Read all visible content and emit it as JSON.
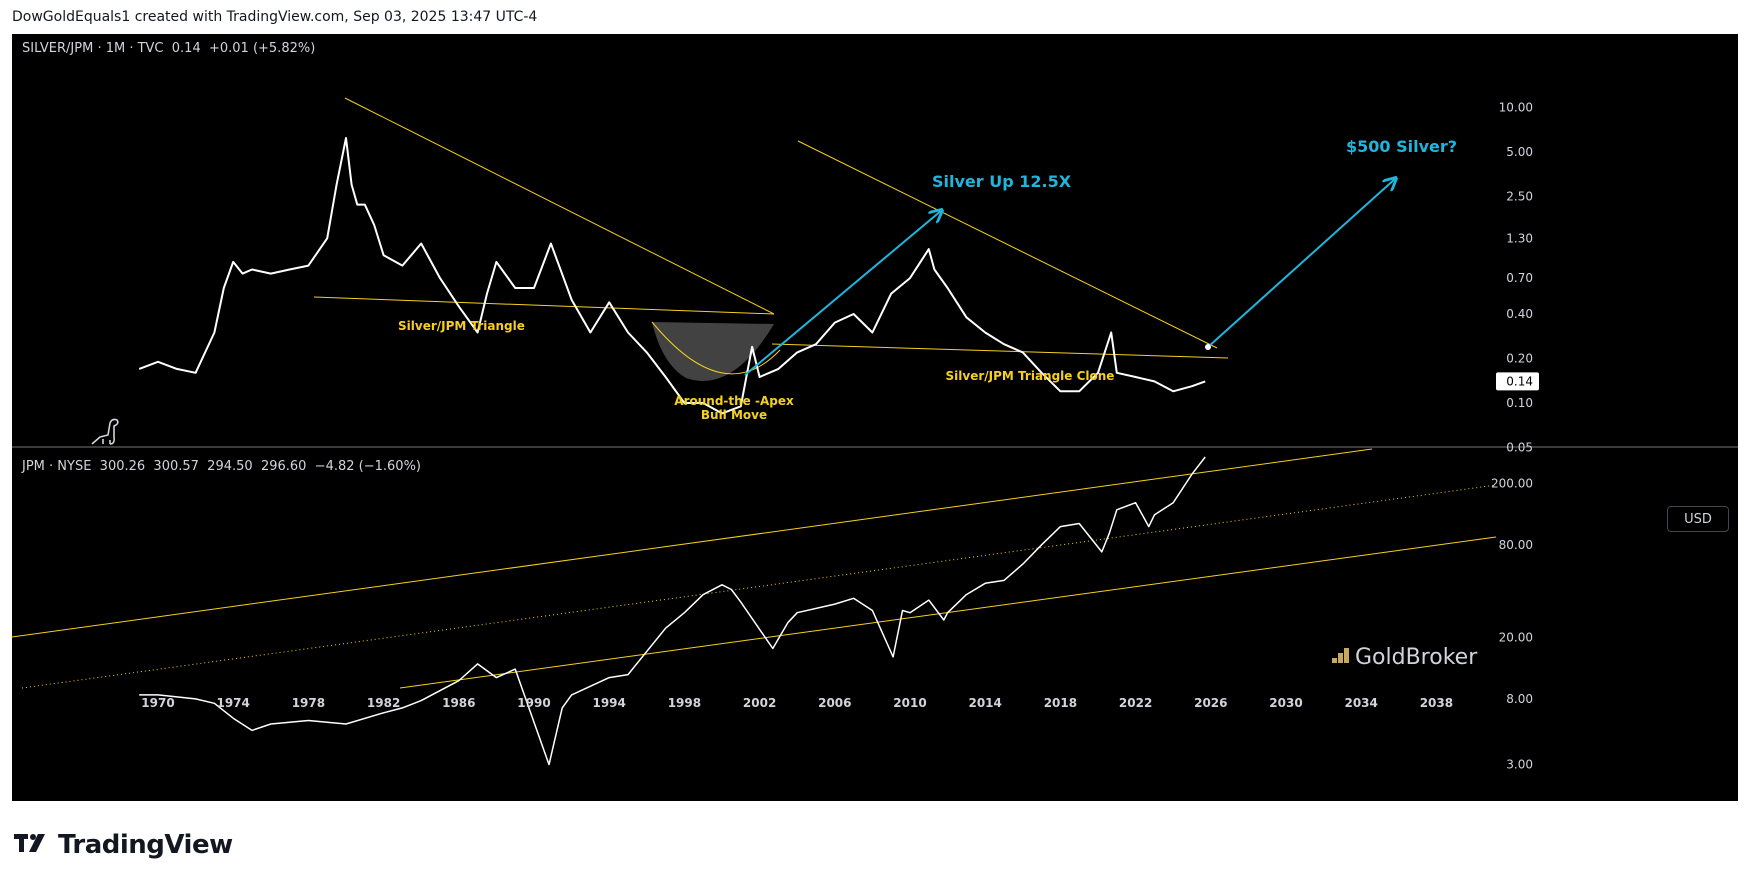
{
  "header": {
    "attribution": "DowGoldEquals1 created with TradingView.com, Sep 03, 2025 13:47 UTC-4"
  },
  "top_panel": {
    "legend": "SILVER/JPM · 1M · TVC  0.14  +0.01 (+5.82%)",
    "price_tag": "0.14"
  },
  "bottom_panel": {
    "legend": "JPM · NYSE  300.26  300.57  294.50  296.60  −4.82 (−1.60%)",
    "currency_button": "USD",
    "watermark": "GoldBroker"
  },
  "brand": {
    "name": "TradingView"
  },
  "colors": {
    "background": "#000000",
    "price_line": "#ffffff",
    "trendline": "#f5d020",
    "arrow": "#1fb5dc",
    "label": "#f5d020",
    "annotation_cyan": "#1fb5dc"
  },
  "icons": [
    "dinosaur-icon",
    "goldbroker-logo-icon",
    "tradingview-logo-icon"
  ],
  "chart_data": [
    {
      "type": "line",
      "title": "SILVER/JPM",
      "yscale": "log",
      "ylim": [
        0.04,
        16
      ],
      "y_ticks": [
        "10.00",
        "5.00",
        "2.50",
        "1.30",
        "0.70",
        "0.40",
        "0.20",
        "0.10",
        "0.05"
      ],
      "x_ticks": [
        "1970",
        "1974",
        "1978",
        "1982",
        "1986",
        "1990",
        "1994",
        "1998",
        "2002",
        "2006",
        "2010",
        "2014",
        "2018",
        "2022",
        "2026",
        "2030",
        "2034",
        "2038"
      ],
      "series": [
        {
          "x": [
            1969,
            1970,
            1971,
            1972,
            1973,
            1973.5,
            1974,
            1974.5,
            1975,
            1976,
            1977,
            1978,
            1979,
            1979.5,
            1980,
            1980.3,
            1980.6,
            1981,
            1981.5,
            1982,
            1983,
            1984,
            1985,
            1986,
            1987,
            1987.5,
            1988,
            1989,
            1990,
            1990.9,
            1992,
            1993,
            1994,
            1995,
            1996,
            1997,
            1998,
            1999,
            2000,
            2001,
            2001.6,
            2002,
            2003,
            2004,
            2005,
            2006,
            2007,
            2008,
            2009,
            2010,
            2011,
            2011.3,
            2012,
            2013,
            2014,
            2015,
            2016,
            2017,
            2018,
            2019,
            2020,
            2020.7,
            2021,
            2022,
            2023,
            2024,
            2025,
            2025.7
          ],
          "y": [
            0.17,
            0.19,
            0.17,
            0.16,
            0.3,
            0.6,
            0.9,
            0.75,
            0.8,
            0.75,
            0.8,
            0.85,
            1.3,
            3.0,
            6.2,
            3.0,
            2.2,
            2.2,
            1.6,
            1.0,
            0.85,
            1.2,
            0.7,
            0.45,
            0.3,
            0.55,
            0.9,
            0.6,
            0.6,
            1.2,
            0.5,
            0.3,
            0.48,
            0.3,
            0.22,
            0.15,
            0.1,
            0.1,
            0.085,
            0.095,
            0.24,
            0.15,
            0.17,
            0.22,
            0.25,
            0.35,
            0.4,
            0.3,
            0.55,
            0.7,
            1.1,
            0.8,
            0.6,
            0.38,
            0.3,
            0.25,
            0.22,
            0.16,
            0.12,
            0.12,
            0.16,
            0.3,
            0.16,
            0.15,
            0.14,
            0.12,
            0.13,
            0.14
          ]
        }
      ],
      "annotations": [
        "Silver/JPM Triangle",
        "Around-the -Apex",
        "Bull Move",
        "Silver/JPM Triangle Clone",
        "Silver Up 12.5X",
        "$500 Silver?"
      ]
    },
    {
      "type": "line",
      "title": "JPM · NYSE",
      "yscale": "log",
      "ylim": [
        2.3,
        500
      ],
      "y_ticks": [
        "200.00",
        "80.00",
        "20.00",
        "8.00",
        "3.00"
      ],
      "x_ticks": [
        "1970",
        "1974",
        "1978",
        "1982",
        "1986",
        "1990",
        "1994",
        "1998",
        "2002",
        "2006",
        "2010",
        "2014",
        "2018",
        "2022",
        "2026",
        "2030",
        "2034",
        "2038"
      ],
      "series": [
        {
          "x": [
            1969,
            1970,
            1972,
            1973,
            1974,
            1975,
            1976,
            1978,
            1980,
            1982,
            1983,
            1984,
            1986,
            1987,
            1988,
            1989,
            1990.8,
            1991.5,
            1992,
            1994,
            1995,
            1997,
            1998,
            1999,
            2000,
            2000.5,
            2001,
            2002.7,
            2003.5,
            2004,
            2006,
            2007,
            2008,
            2009.1,
            2009.6,
            2010,
            2011,
            2011.8,
            2012,
            2013,
            2014,
            2015,
            2016,
            2017,
            2018,
            2019,
            2020.2,
            2020.6,
            2021,
            2022,
            2022.7,
            2023,
            2024,
            2025,
            2025.7
          ],
          "y": [
            8.5,
            8.5,
            8.0,
            7.5,
            6.0,
            5.0,
            5.5,
            5.8,
            5.5,
            6.5,
            7.0,
            7.8,
            10.5,
            13.5,
            11,
            12.5,
            3.0,
            7.0,
            8.5,
            11,
            11.5,
            23,
            29,
            38,
            44,
            41,
            34,
            17,
            25,
            29,
            33,
            36,
            30,
            15,
            30,
            29,
            35,
            26,
            29,
            38,
            45,
            47,
            60,
            80,
            105,
            110,
            72,
            95,
            135,
            150,
            105,
            125,
            150,
            230,
            297
          ]
        }
      ],
      "currency": "USD"
    }
  ]
}
